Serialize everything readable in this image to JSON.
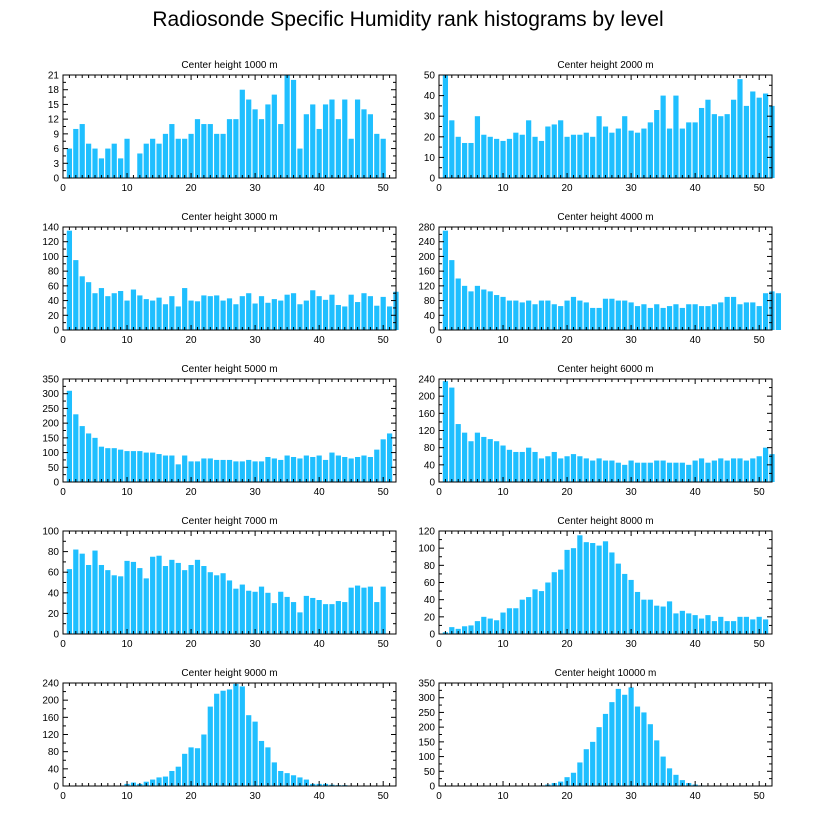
{
  "figure": {
    "title": "Radiosonde Specific Humidity rank histograms by level",
    "bar_color": "#1fbfff"
  },
  "chart_data": [
    {
      "type": "bar",
      "title": "Center height 1000 m",
      "xlim": [
        0,
        52
      ],
      "ylim": [
        0,
        21
      ],
      "yticks": [
        0,
        3,
        6,
        9,
        12,
        15,
        18,
        21
      ],
      "xticks": [
        0,
        10,
        20,
        30,
        40,
        50
      ],
      "values": [
        6,
        10,
        11,
        7,
        6,
        4,
        6,
        7,
        4,
        8,
        0,
        5,
        7,
        8,
        7,
        9,
        11,
        8,
        8,
        9,
        12,
        11,
        11,
        9,
        9,
        12,
        12,
        18,
        16,
        14,
        12,
        15,
        17,
        11,
        21,
        20,
        6,
        13,
        15,
        10,
        15,
        16,
        12,
        16,
        8,
        16,
        14,
        13,
        9,
        8
      ]
    },
    {
      "type": "bar",
      "title": "Center height 2000 m",
      "xlim": [
        0,
        52
      ],
      "ylim": [
        0,
        50
      ],
      "yticks": [
        0,
        10,
        20,
        30,
        40,
        50
      ],
      "xticks": [
        0,
        10,
        20,
        30,
        40,
        50
      ],
      "values": [
        50,
        28,
        20,
        17,
        17,
        30,
        21,
        20,
        19,
        18,
        19,
        22,
        21,
        28,
        20,
        18,
        25,
        26,
        28,
        20,
        21,
        21,
        22,
        20,
        30,
        25,
        22,
        24,
        30,
        23,
        22,
        24,
        27,
        33,
        40,
        24,
        40,
        24,
        27,
        27,
        34,
        38,
        31,
        30,
        31,
        38,
        48,
        35,
        42,
        39,
        41,
        35
      ]
    },
    {
      "type": "bar",
      "title": "Center height 3000 m",
      "xlim": [
        0,
        52
      ],
      "ylim": [
        0,
        140
      ],
      "yticks": [
        0,
        20,
        40,
        60,
        80,
        100,
        120,
        140
      ],
      "xticks": [
        0,
        10,
        20,
        30,
        40,
        50
      ],
      "values": [
        135,
        95,
        73,
        65,
        50,
        57,
        46,
        50,
        53,
        40,
        55,
        47,
        42,
        40,
        44,
        35,
        46,
        32,
        57,
        40,
        39,
        47,
        46,
        47,
        40,
        43,
        35,
        46,
        50,
        36,
        46,
        37,
        42,
        40,
        48,
        50,
        35,
        40,
        54,
        46,
        41,
        48,
        34,
        32,
        48,
        38,
        50,
        46,
        33,
        45,
        32,
        52
      ]
    },
    {
      "type": "bar",
      "title": "Center height 4000 m",
      "xlim": [
        0,
        52
      ],
      "ylim": [
        0,
        280
      ],
      "yticks": [
        0,
        40,
        80,
        120,
        160,
        200,
        240,
        280
      ],
      "xticks": [
        0,
        10,
        20,
        30,
        40,
        50
      ],
      "values": [
        270,
        190,
        140,
        120,
        105,
        120,
        110,
        105,
        95,
        90,
        80,
        80,
        75,
        80,
        70,
        80,
        80,
        70,
        65,
        80,
        90,
        80,
        75,
        60,
        60,
        85,
        85,
        80,
        80,
        75,
        65,
        70,
        60,
        70,
        60,
        65,
        70,
        60,
        70,
        70,
        65,
        65,
        70,
        75,
        90,
        90,
        70,
        75,
        75,
        65,
        100,
        105,
        100
      ]
    },
    {
      "type": "bar",
      "title": "Center height 5000 m",
      "xlim": [
        0,
        52
      ],
      "ylim": [
        0,
        350
      ],
      "yticks": [
        0,
        50,
        100,
        150,
        200,
        250,
        300,
        350
      ],
      "xticks": [
        0,
        10,
        20,
        30,
        40,
        50
      ],
      "values": [
        310,
        230,
        190,
        165,
        150,
        120,
        115,
        115,
        110,
        105,
        105,
        105,
        100,
        100,
        95,
        90,
        90,
        60,
        90,
        70,
        70,
        80,
        80,
        75,
        75,
        75,
        70,
        70,
        75,
        70,
        70,
        85,
        80,
        75,
        90,
        85,
        80,
        90,
        85,
        90,
        75,
        100,
        90,
        85,
        80,
        85,
        90,
        85,
        110,
        145,
        165
      ]
    },
    {
      "type": "bar",
      "title": "Center height 6000 m",
      "xlim": [
        0,
        52
      ],
      "ylim": [
        0,
        240
      ],
      "yticks": [
        0,
        40,
        80,
        120,
        160,
        200,
        240
      ],
      "xticks": [
        0,
        10,
        20,
        30,
        40,
        50
      ],
      "values": [
        235,
        220,
        135,
        115,
        95,
        115,
        105,
        100,
        95,
        85,
        75,
        70,
        70,
        80,
        70,
        55,
        60,
        70,
        55,
        60,
        65,
        60,
        55,
        50,
        55,
        50,
        50,
        45,
        40,
        50,
        45,
        45,
        45,
        50,
        50,
        45,
        45,
        45,
        40,
        50,
        55,
        45,
        50,
        55,
        50,
        55,
        55,
        50,
        55,
        60,
        80,
        65
      ]
    },
    {
      "type": "bar",
      "title": "Center height 7000 m",
      "xlim": [
        0,
        52
      ],
      "ylim": [
        0,
        100
      ],
      "yticks": [
        0,
        20,
        40,
        60,
        80,
        100
      ],
      "xticks": [
        0,
        10,
        20,
        30,
        40,
        50
      ],
      "values": [
        63,
        82,
        78,
        67,
        81,
        67,
        62,
        57,
        56,
        71,
        70,
        64,
        54,
        75,
        76,
        66,
        72,
        69,
        62,
        67,
        72,
        66,
        60,
        57,
        59,
        52,
        44,
        48,
        42,
        41,
        46,
        40,
        30,
        41,
        36,
        31,
        21,
        37,
        35,
        33,
        29,
        29,
        32,
        31,
        45,
        47,
        45,
        46,
        31,
        46
      ]
    },
    {
      "type": "bar",
      "title": "Center height 8000 m",
      "xlim": [
        0,
        52
      ],
      "ylim": [
        0,
        120
      ],
      "yticks": [
        0,
        20,
        40,
        60,
        80,
        100,
        120
      ],
      "xticks": [
        0,
        10,
        20,
        30,
        40,
        50
      ],
      "values": [
        2,
        8,
        6,
        9,
        10,
        15,
        20,
        18,
        16,
        25,
        30,
        30,
        40,
        43,
        52,
        50,
        60,
        72,
        75,
        98,
        100,
        115,
        107,
        106,
        103,
        108,
        95,
        82,
        70,
        63,
        49,
        40,
        40,
        33,
        32,
        38,
        24,
        27,
        24,
        22,
        18,
        22,
        15,
        20,
        15,
        15,
        20,
        20,
        17,
        20,
        17
      ]
    },
    {
      "type": "bar",
      "title": "Center height 9000 m",
      "xlim": [
        0,
        52
      ],
      "ylim": [
        0,
        240
      ],
      "yticks": [
        0,
        40,
        80,
        120,
        160,
        200,
        240
      ],
      "xticks": [
        0,
        10,
        20,
        30,
        40,
        50
      ],
      "values": [
        0,
        0,
        0,
        0,
        0,
        0,
        0,
        0,
        0,
        5,
        8,
        5,
        10,
        15,
        20,
        22,
        35,
        45,
        75,
        90,
        88,
        120,
        185,
        215,
        222,
        225,
        238,
        232,
        165,
        150,
        105,
        90,
        55,
        35,
        30,
        25,
        20,
        15,
        5,
        5,
        5,
        3,
        2,
        2,
        0,
        0,
        0,
        0,
        0,
        0,
        0,
        0
      ]
    },
    {
      "type": "bar",
      "title": "Center height 10000 m",
      "xlim": [
        0,
        52
      ],
      "ylim": [
        0,
        350
      ],
      "yticks": [
        0,
        50,
        100,
        150,
        200,
        250,
        300,
        350
      ],
      "xticks": [
        0,
        10,
        20,
        30,
        40,
        50
      ],
      "values": [
        0,
        0,
        0,
        0,
        0,
        0,
        0,
        0,
        0,
        0,
        0,
        0,
        0,
        0,
        0,
        2,
        5,
        10,
        15,
        30,
        45,
        80,
        125,
        150,
        200,
        245,
        285,
        330,
        310,
        335,
        270,
        250,
        210,
        155,
        100,
        60,
        38,
        20,
        10,
        5,
        2,
        0,
        0,
        0,
        0,
        0,
        0,
        0,
        0,
        0,
        0,
        0
      ]
    }
  ]
}
